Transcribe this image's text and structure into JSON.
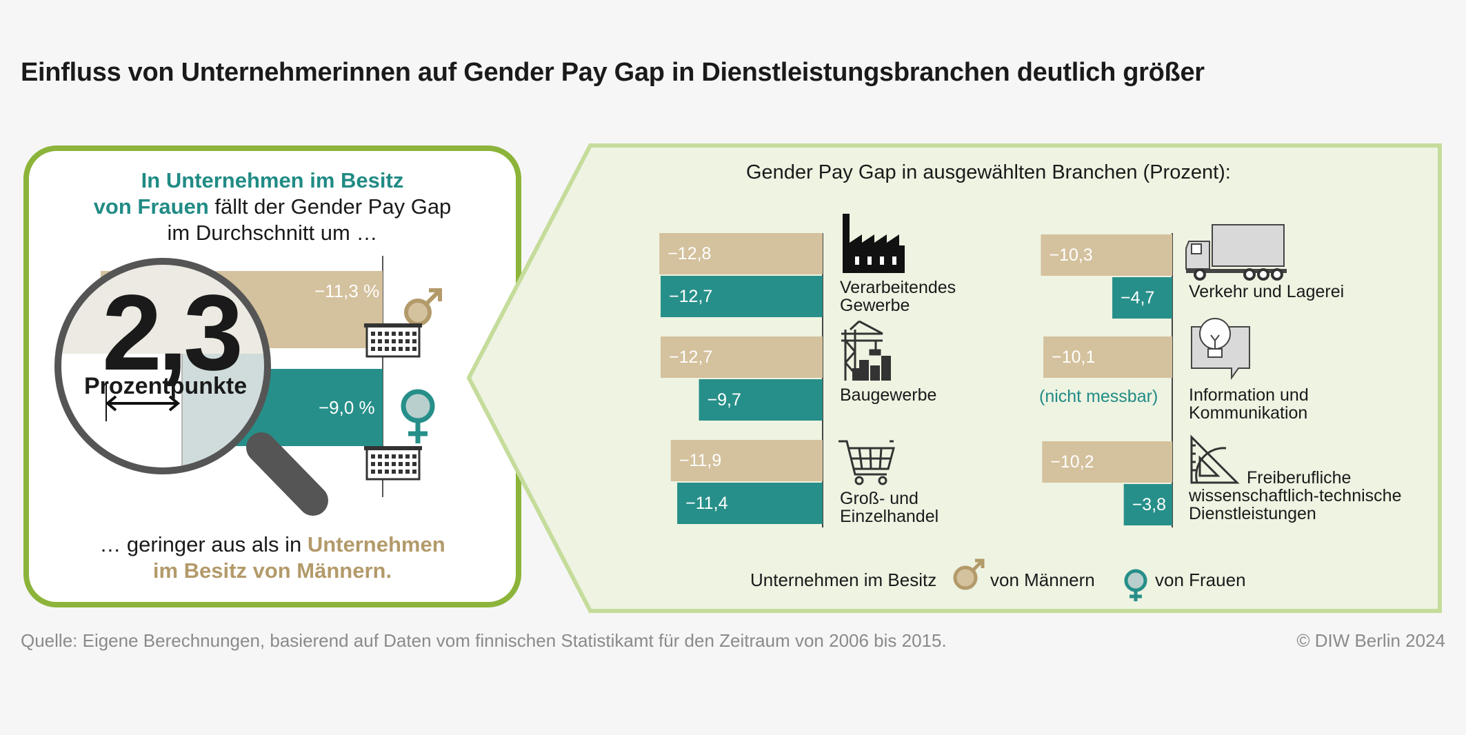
{
  "title": "Einfluss von Unternehmerinnen auf Gender Pay Gap in Dienstleistungsbranchen deutlich größer",
  "left_card": {
    "intro_highlight": "In Unternehmen im Besitz",
    "intro_highlight2": "von Frauen",
    "intro_rest": " fällt der Gender Pay Gap",
    "intro_line3": "im Durchschnitt um …",
    "big_number": "2,3",
    "unit_label": "Prozentpunkte",
    "male_value_label": "−11,3 %",
    "female_value_label": "−9,0 %",
    "outro_plain": "… geringer aus als in ",
    "outro_highlight": "Unternehmen",
    "outro_highlight2": "im Besitz von Männern.",
    "colors": {
      "male": "#d4c19d",
      "female": "#278f89",
      "border": "#8cb43a"
    },
    "icons": [
      "magnifier-icon",
      "male-symbol-icon",
      "female-symbol-icon",
      "office-building-icon"
    ]
  },
  "chart_heading": "Gender Pay Gap in ausgewählten Branchen (Prozent):",
  "chart_data": {
    "type": "bar",
    "orientation": "horizontal",
    "title": "Gender Pay Gap in ausgewählten Branchen (Prozent):",
    "unit": "Prozent",
    "series": [
      {
        "name": "von Männern",
        "color": "#d4c19d",
        "values": [
          -12.8,
          -12.7,
          -11.9,
          -10.3,
          -10.1,
          -10.2
        ]
      },
      {
        "name": "von Frauen",
        "color": "#278f89",
        "values": [
          -12.7,
          -9.7,
          -11.4,
          -4.7,
          null,
          -3.8
        ]
      }
    ],
    "categories": [
      "Verarbeitendes Gewerbe",
      "Baugewerbe",
      "Groß- und Einzelhandel",
      "Verkehr und Lagerei",
      "Information und Kommunikation",
      "Freiberufliche wissenschaftlich-technische Dienstleistungen"
    ],
    "labels": {
      "male": [
        "−12,8",
        "−12,7",
        "−11,9",
        "−10,3",
        "−10,1",
        "−10,2"
      ],
      "female": [
        "−12,7",
        "−9,7",
        "−11,4",
        "−4,7",
        "(nicht messbar)",
        "−3,8"
      ]
    },
    "branch_lines": [
      [
        "Verarbeitendes",
        "Gewerbe"
      ],
      [
        "Baugewerbe"
      ],
      [
        "Groß- und",
        "Einzelhandel"
      ],
      [
        "Verkehr und Lagerei"
      ],
      [
        "Information und",
        "Kommunikation"
      ],
      [
        "Freiberufliche",
        "wissenschaftlich-technische",
        "Dienstleistungen"
      ]
    ],
    "icons": [
      "factory-icon",
      "construction-crane-icon",
      "shopping-cart-icon",
      "truck-icon",
      "lightbulb-screen-icon",
      "set-square-icon"
    ],
    "legend": {
      "prefix": "Unternehmen im Besitz",
      "male": "von Männern",
      "female": "von Frauen",
      "placement": "bottom"
    }
  },
  "source": "Quelle: Eigene Berechnungen, basierend auf Daten vom finnischen Statistikamt für den Zeitraum von 2006 bis 2015.",
  "copyright": "© DIW Berlin 2024"
}
